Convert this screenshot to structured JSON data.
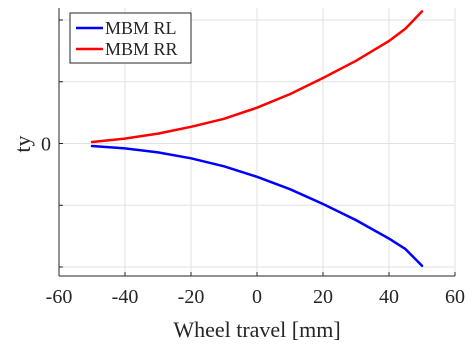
{
  "chart_data": {
    "type": "line",
    "title": "",
    "xlabel": "Wheel travel [mm]",
    "ylabel": "ty",
    "xlim": [
      -60,
      60
    ],
    "ylim": [
      -1,
      1
    ],
    "xticks": [
      -60,
      -40,
      -20,
      0,
      20,
      40,
      60
    ],
    "xtick_labels": [
      "-60",
      "-40",
      "-20",
      "0",
      "20",
      "40",
      "60"
    ],
    "yticks": [
      -1,
      -0.5,
      0,
      0.5,
      1
    ],
    "ytick_labels": [
      "",
      "",
      "0",
      "",
      ""
    ],
    "grid": true,
    "legend_position": "top-left",
    "series": [
      {
        "name": "MBM RL",
        "color": "#0000ff",
        "x": [
          -50,
          -40,
          -30,
          -20,
          -10,
          0,
          10,
          20,
          30,
          40,
          45,
          50
        ],
        "y": [
          -0.02,
          -0.04,
          -0.072,
          -0.12,
          -0.185,
          -0.27,
          -0.37,
          -0.49,
          -0.62,
          -0.77,
          -0.855,
          -0.99
        ]
      },
      {
        "name": "MBM RR",
        "color": "#ff0000",
        "x": [
          -50,
          -40,
          -30,
          -20,
          -10,
          0,
          10,
          20,
          30,
          40,
          45,
          50
        ],
        "y": [
          0.012,
          0.04,
          0.08,
          0.135,
          0.2,
          0.29,
          0.4,
          0.53,
          0.67,
          0.83,
          0.93,
          1.07
        ]
      }
    ]
  }
}
